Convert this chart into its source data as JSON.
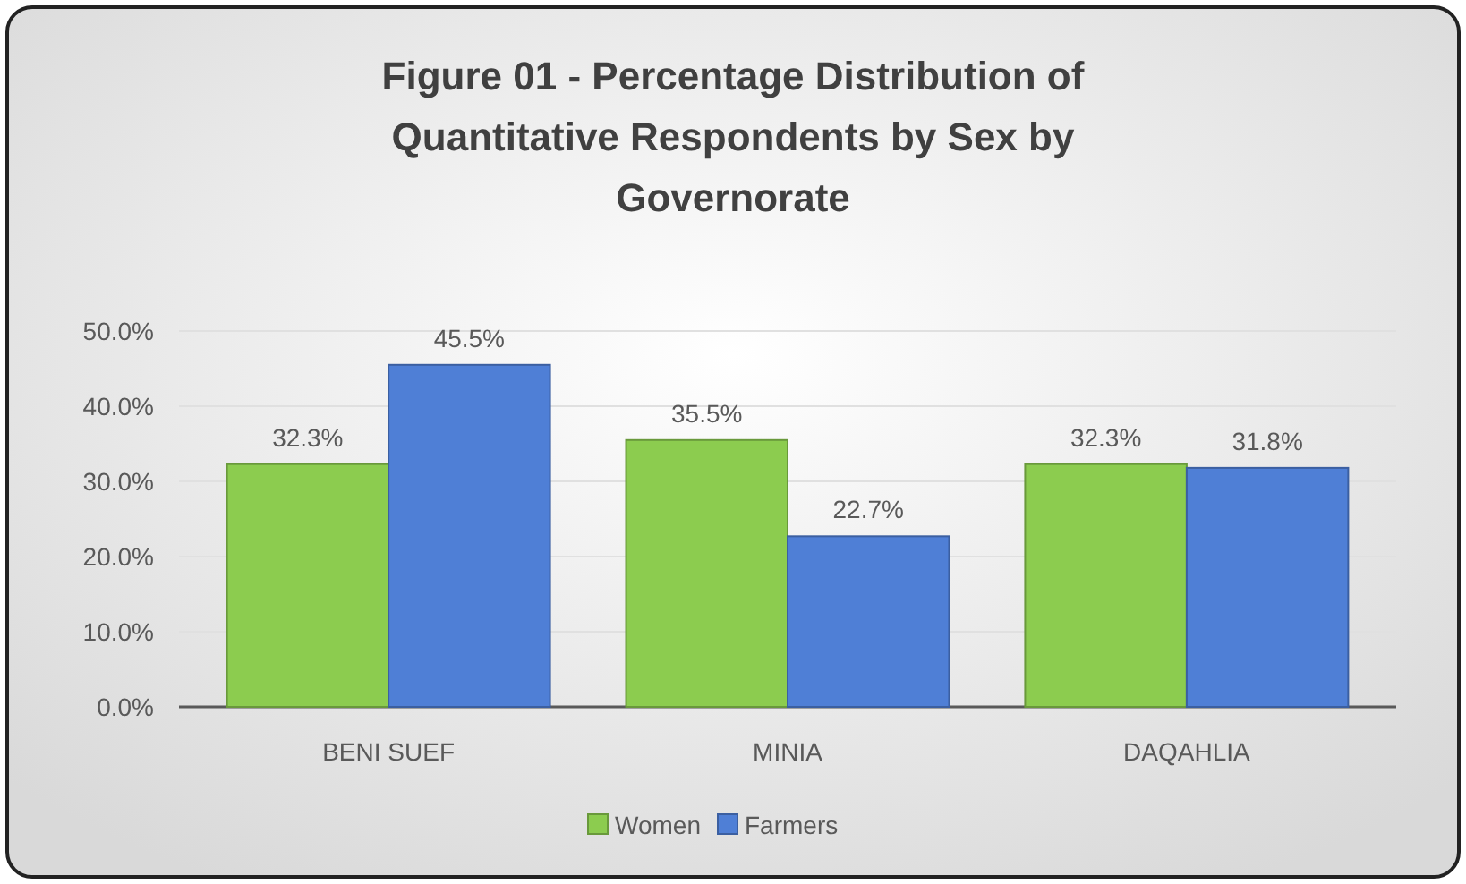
{
  "chart_data": {
    "type": "bar",
    "title": "Figure 01 - Percentage Distribution of Quantitative Respondents by Sex by Governorate",
    "categories": [
      "BENI SUEF",
      "MINIA",
      "DAQAHLIA"
    ],
    "series": [
      {
        "name": "Women",
        "color": "#8ccc4f",
        "values": [
          32.3,
          35.5,
          32.3
        ],
        "value_labels": [
          "32.3%",
          "35.5%",
          "32.3%"
        ]
      },
      {
        "name": "Farmers",
        "color": "#4f7fd6",
        "values": [
          45.5,
          22.7,
          31.8
        ],
        "value_labels": [
          "45.5%",
          "22.7%",
          "31.8%"
        ]
      }
    ],
    "ylim": [
      0,
      50
    ],
    "yticks": [
      {
        "value": 0,
        "label": "0.0%"
      },
      {
        "value": 10,
        "label": "10.0%"
      },
      {
        "value": 20,
        "label": "20.0%"
      },
      {
        "value": 30,
        "label": "30.0%"
      },
      {
        "value": 40,
        "label": "40.0%"
      },
      {
        "value": 50,
        "label": "50.0%"
      }
    ],
    "grid": "y",
    "legend": "bottom"
  }
}
